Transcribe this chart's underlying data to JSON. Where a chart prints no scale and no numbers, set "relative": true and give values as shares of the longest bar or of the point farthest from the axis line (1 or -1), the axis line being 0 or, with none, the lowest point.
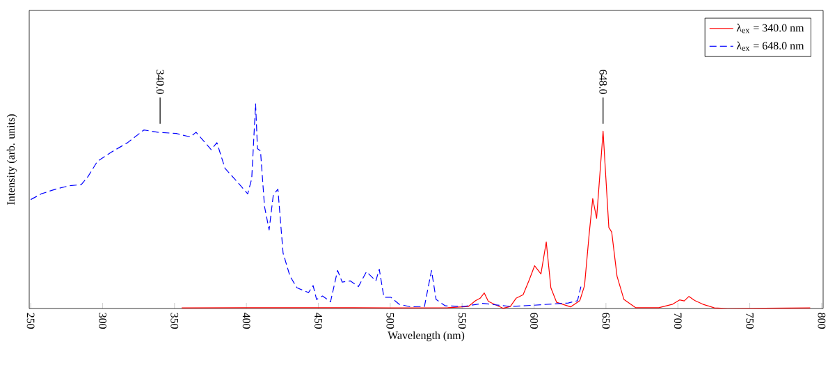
{
  "chart_data": {
    "type": "line",
    "relative": true,
    "xlabel": "Wavelength (nm)",
    "ylabel": "Intensity (arb. units)",
    "xlim": [
      249,
      801
    ],
    "xticks": [
      250,
      300,
      350,
      400,
      450,
      500,
      550,
      600,
      650,
      700,
      750,
      800
    ],
    "legend": "top right",
    "ref_lines": [
      {
        "axis": "x",
        "value": 340,
        "label": "340.0",
        "color": "#000000"
      },
      {
        "axis": "x",
        "value": 648,
        "label": "648.0",
        "color": "#000000"
      }
    ],
    "series": [
      {
        "name": "λ$_{ex}$ = 340.0 nm",
        "color": "#ff0000",
        "line_style": "solid",
        "x": [
          355,
          400,
          450,
          500,
          540,
          554.4,
          559.3,
          562.5,
          565.4,
          568.2,
          573.8,
          578.6,
          583.5,
          587.5,
          592.4,
          596.4,
          600.4,
          604.8,
          608.5,
          611.7,
          615.7,
          625.4,
          631.8,
          635.1,
          638.3,
          640.8,
          643.5,
          648,
          652,
          654,
          657.7,
          662.5,
          670.6,
          686.7,
          696.4,
          701.2,
          704.4,
          707.7,
          711.7,
          717.3,
          725.4,
          734.5,
          760,
          792
        ],
        "values": [
          0.003,
          0.004,
          0.004,
          0.003,
          0.004,
          0.01,
          0.038,
          0.05,
          0.076,
          0.035,
          0.016,
          0.001,
          0.01,
          0.05,
          0.067,
          0.135,
          0.209,
          0.169,
          0.325,
          0.101,
          0.03,
          0.008,
          0.038,
          0.112,
          0.362,
          0.537,
          0.441,
          0.866,
          0.396,
          0.373,
          0.158,
          0.044,
          0.004,
          0.004,
          0.021,
          0.042,
          0.037,
          0.059,
          0.039,
          0.021,
          0.003,
          0,
          0.001,
          0.003
        ]
      },
      {
        "name": "λ$_{ex}$ = 648.0 nm",
        "color": "#0000ff",
        "line_style": "dashed",
        "x": [
          250,
          257.7,
          267.4,
          277.1,
          285.2,
          290,
          296.4,
          306.1,
          317.4,
          328.7,
          338.4,
          351.3,
          361,
          365,
          375.5,
          379.5,
          385.1,
          393.2,
          400.9,
          403.7,
          406.4,
          407.7,
          409.8,
          412.6,
          415.8,
          418.7,
          421.9,
          425.5,
          430.3,
          435.2,
          443.2,
          446.4,
          448.8,
          452.9,
          458.5,
          463.4,
          466.6,
          472.2,
          477.9,
          483.5,
          490,
          492.4,
          495.6,
          500.5,
          506.1,
          514.2,
          523.8,
          528.7,
          531.9,
          538.3,
          551.3,
          564.1,
          583.5,
          599.6,
          623.8,
          630.2,
          632.6
        ],
        "values": [
          0.532,
          0.561,
          0.583,
          0.6,
          0.605,
          0.646,
          0.719,
          0.764,
          0.81,
          0.872,
          0.861,
          0.855,
          0.838,
          0.861,
          0.776,
          0.81,
          0.685,
          0.622,
          0.56,
          0.634,
          1,
          0.781,
          0.77,
          0.498,
          0.384,
          0.554,
          0.583,
          0.271,
          0.158,
          0.101,
          0.078,
          0.112,
          0.044,
          0.061,
          0.033,
          0.186,
          0.129,
          0.135,
          0.107,
          0.18,
          0.135,
          0.192,
          0.055,
          0.055,
          0.021,
          0.008,
          0.01,
          0.186,
          0.044,
          0.013,
          0.01,
          0.025,
          0.01,
          0.016,
          0.027,
          0.038,
          0.107
        ]
      }
    ]
  }
}
